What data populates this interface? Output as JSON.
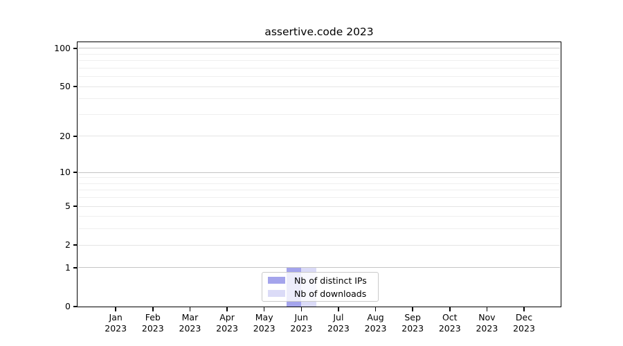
{
  "figure": {
    "title": "assertive.code 2023"
  },
  "chart_data": {
    "type": "bar",
    "title": "assertive.code 2023",
    "categories": [
      {
        "month": "Jan",
        "year": "2023"
      },
      {
        "month": "Feb",
        "year": "2023"
      },
      {
        "month": "Mar",
        "year": "2023"
      },
      {
        "month": "Apr",
        "year": "2023"
      },
      {
        "month": "May",
        "year": "2023"
      },
      {
        "month": "Jun",
        "year": "2023"
      },
      {
        "month": "Jul",
        "year": "2023"
      },
      {
        "month": "Aug",
        "year": "2023"
      },
      {
        "month": "Sep",
        "year": "2023"
      },
      {
        "month": "Oct",
        "year": "2023"
      },
      {
        "month": "Nov",
        "year": "2023"
      },
      {
        "month": "Dec",
        "year": "2023"
      }
    ],
    "series": [
      {
        "name": "Nb of distinct IPs",
        "color": "#a4a4ec",
        "values": [
          0,
          0,
          0,
          0,
          0,
          1,
          0,
          0,
          0,
          0,
          0,
          0
        ]
      },
      {
        "name": "Nb of downloads",
        "color": "#dbdbf7",
        "values": [
          0,
          0,
          0,
          0,
          0,
          1,
          0,
          0,
          0,
          0,
          0,
          0
        ]
      }
    ],
    "y_axis": {
      "scale": "log1p",
      "range": [
        0,
        112
      ],
      "tick_labels": [
        "0",
        "1",
        "2",
        "5",
        "10",
        "20",
        "50",
        "100"
      ],
      "major_ticks": [
        0,
        1,
        2,
        5,
        10,
        20,
        50,
        100
      ],
      "emphasized_gridlines": [
        1,
        10,
        100
      ],
      "minor_gridlines": [
        3,
        4,
        6,
        7,
        8,
        9,
        30,
        40,
        60,
        70,
        80,
        90
      ]
    },
    "legend": {
      "position": "lower center",
      "items": [
        "Nb of distinct IPs",
        "Nb of downloads"
      ]
    },
    "grid": true
  },
  "colors": {
    "background": "#ffffff",
    "axis": "#000000",
    "text": "#000000",
    "grid_emphasized": "#c4c4c4",
    "grid_major": "#e4e4e4",
    "grid_minor": "#efefef",
    "legend_border": "#c9c9c9"
  }
}
